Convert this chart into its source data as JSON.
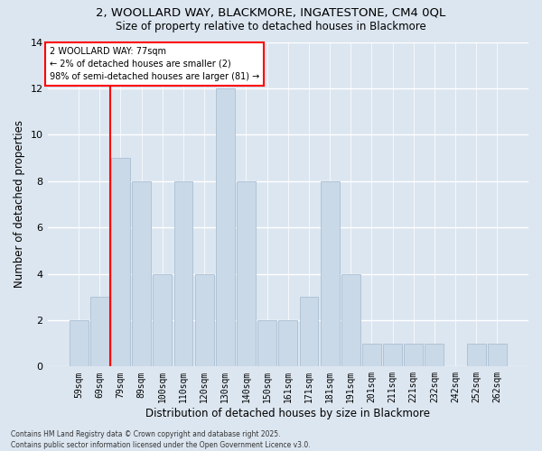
{
  "title_line1": "2, WOOLLARD WAY, BLACKMORE, INGATESTONE, CM4 0QL",
  "title_line2": "Size of property relative to detached houses in Blackmore",
  "xlabel": "Distribution of detached houses by size in Blackmore",
  "ylabel": "Number of detached properties",
  "bar_labels": [
    "59sqm",
    "69sqm",
    "79sqm",
    "89sqm",
    "100sqm",
    "110sqm",
    "120sqm",
    "130sqm",
    "140sqm",
    "150sqm",
    "161sqm",
    "171sqm",
    "181sqm",
    "191sqm",
    "201sqm",
    "211sqm",
    "221sqm",
    "232sqm",
    "242sqm",
    "252sqm",
    "262sqm"
  ],
  "bar_values": [
    2,
    3,
    9,
    8,
    4,
    8,
    4,
    12,
    8,
    2,
    2,
    3,
    8,
    4,
    1,
    1,
    1,
    1,
    0,
    1,
    1
  ],
  "bar_color": "#c9d9e8",
  "bar_edgecolor": "#aabfd4",
  "bg_color": "#dce6f0",
  "property_line_x": 1.5,
  "annotation_title": "2 WOOLLARD WAY: 77sqm",
  "annotation_line2": "← 2% of detached houses are smaller (2)",
  "annotation_line3": "98% of semi-detached houses are larger (81) →",
  "footer_line1": "Contains HM Land Registry data © Crown copyright and database right 2025.",
  "footer_line2": "Contains public sector information licensed under the Open Government Licence v3.0.",
  "ylim": [
    0,
    14
  ],
  "yticks": [
    0,
    2,
    4,
    6,
    8,
    10,
    12,
    14
  ]
}
